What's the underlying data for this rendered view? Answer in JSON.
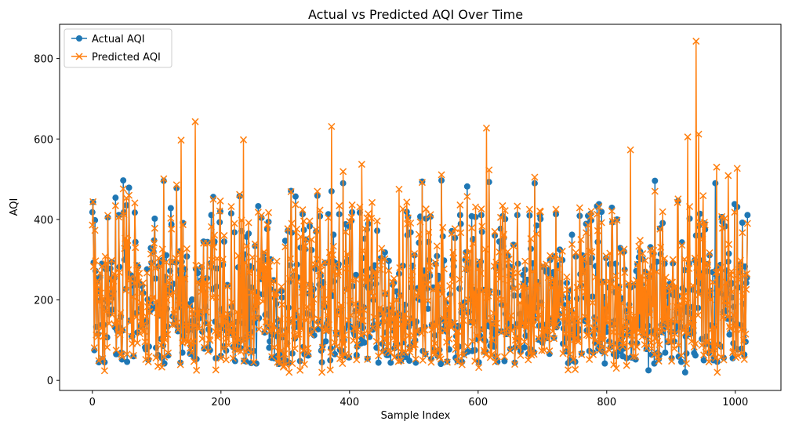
{
  "chart_data": {
    "type": "line",
    "title": "Actual vs Predicted AQI Over Time",
    "xlabel": "Sample Index",
    "ylabel": "AQI",
    "xlim": [
      -51,
      1071
    ],
    "ylim": [
      -25,
      885
    ],
    "xticks": [
      0,
      200,
      400,
      600,
      800,
      1000
    ],
    "yticks": [
      0,
      200,
      400,
      600,
      800
    ],
    "grid": false,
    "legend_position": "top-left",
    "n_samples": 1020,
    "series": [
      {
        "name": "Actual AQI",
        "color": "#1f77b4",
        "marker": "circle",
        "values": []
      },
      {
        "name": "Predicted AQI",
        "color": "#ff7f0e",
        "marker": "x",
        "values": []
      }
    ]
  }
}
